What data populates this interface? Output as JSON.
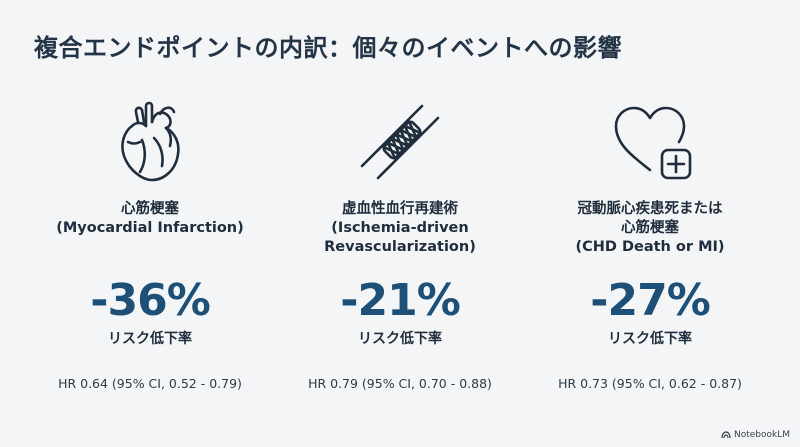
{
  "title": "複合エンドポイントの内訳：個々のイベントへの影響",
  "columns": [
    {
      "icon": "heart-anatomical-icon",
      "label_lines": [
        "心筋梗塞",
        "(Myocardial Infarction)"
      ],
      "reduction": "-36%",
      "reduction_label": "リスク低下率",
      "hr": "HR 0.64 (95% CI, 0.52 - 0.79)"
    },
    {
      "icon": "stent-icon",
      "label_lines": [
        "虚血性血行再建術",
        "(Ischemia-driven",
        "Revascularization)"
      ],
      "reduction": "-21%",
      "reduction_label": "リスク低下率",
      "hr": "HR 0.79 (95% CI, 0.70 - 0.88)"
    },
    {
      "icon": "heart-plus-icon",
      "label_lines": [
        "冠動脈心疾患死または",
        "心筋梗塞",
        "(CHD Death or MI)"
      ],
      "reduction": "-27%",
      "reduction_label": "リスク低下率",
      "hr": "HR 0.73 (95% CI, 0.62 - 0.87)"
    }
  ],
  "watermark": "NotebookLM",
  "colors": {
    "accent": "#1e5077",
    "text": "#1f2d3d",
    "background": "#f4f5f7"
  }
}
